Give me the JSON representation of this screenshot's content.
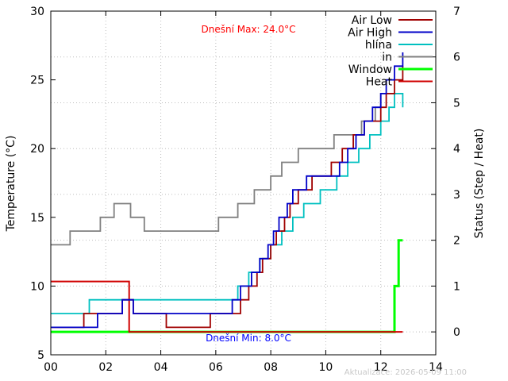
{
  "chart_data": {
    "type": "line",
    "xlabel": "",
    "ylabel": "Temperature (°C)",
    "y2label": "Status (Step / Heat)",
    "xlim": [
      0,
      14
    ],
    "ylim": [
      5,
      30
    ],
    "y2lim": [
      -0.5,
      7
    ],
    "x_ticks": [
      0,
      2,
      4,
      6,
      8,
      10,
      12,
      14
    ],
    "x_tick_labels": [
      "00",
      "02",
      "04",
      "06",
      "08",
      "10",
      "12",
      "14"
    ],
    "y_ticks": [
      5,
      10,
      15,
      20,
      25,
      30
    ],
    "y_tick_labels": [
      "5",
      "10",
      "15",
      "20",
      "25",
      "30"
    ],
    "y2_ticks": [
      0,
      1,
      2,
      3,
      4,
      5,
      6,
      7
    ],
    "y2_tick_labels": [
      "0",
      "1",
      "2",
      "3",
      "4",
      "5",
      "6",
      "7"
    ],
    "grid": true,
    "legend_position": "top-right",
    "annotations": {
      "max_text": "Dnešní Max: 24.0°C",
      "min_text": "Dnešní Min: 8.0°C",
      "max_color": "#ff0000",
      "min_color": "#0000ff"
    },
    "footer": "Aktualizace: 2026-05-09 11:00",
    "series": [
      {
        "name": "Air Low",
        "color": "#a00000",
        "axis": "y",
        "step": true,
        "x": [
          0,
          1.2,
          2.5,
          2.6,
          3.0,
          4.0,
          4.2,
          5.6,
          5.8,
          6.7,
          6.9,
          7.2,
          7.5,
          7.7,
          8.0,
          8.2,
          8.5,
          8.7,
          9.0,
          9.5,
          10.2,
          10.6,
          11.0,
          11.4,
          11.8,
          12.0,
          12.2,
          12.5,
          12.8
        ],
        "y": [
          7,
          8,
          8,
          9,
          8,
          8,
          7,
          7,
          8,
          8,
          9,
          10,
          11,
          12,
          13,
          14,
          15,
          16,
          17,
          18,
          19,
          20,
          21,
          22,
          22,
          23,
          24,
          25,
          26
        ]
      },
      {
        "name": "Air High",
        "color": "#0000c8",
        "axis": "y",
        "step": true,
        "x": [
          0,
          1.7,
          2.6,
          3.0,
          6.3,
          6.6,
          6.9,
          7.3,
          7.6,
          7.9,
          8.1,
          8.3,
          8.6,
          8.8,
          9.0,
          9.3,
          10.5,
          10.8,
          11.1,
          11.4,
          11.7,
          12.0,
          12.2,
          12.5,
          12.8
        ],
        "y": [
          7,
          8,
          9,
          8,
          8,
          9,
          10,
          11,
          12,
          13,
          14,
          15,
          16,
          17,
          17,
          18,
          19,
          20,
          21,
          22,
          23,
          24,
          25,
          26,
          27
        ]
      },
      {
        "name": "hlína",
        "color": "#00c0c0",
        "axis": "y",
        "step": true,
        "x": [
          0,
          1.4,
          6.4,
          6.8,
          7.2,
          7.6,
          8.0,
          8.4,
          8.8,
          9.2,
          9.8,
          10.4,
          10.8,
          11.2,
          11.6,
          12.0,
          12.3,
          12.5,
          12.8
        ],
        "y": [
          8,
          9,
          9,
          10,
          11,
          12,
          13,
          14,
          15,
          16,
          17,
          18,
          19,
          20,
          21,
          22,
          23,
          24,
          23
        ]
      },
      {
        "name": "in",
        "color": "#808080",
        "axis": "y",
        "step": true,
        "x": [
          0,
          0.7,
          1.8,
          2.3,
          2.9,
          3.4,
          4.1,
          4.8,
          5.5,
          6.1,
          6.8,
          7.4,
          8.0,
          8.4,
          9.0,
          9.6,
          10.3,
          10.9,
          11.3,
          11.8,
          12.0,
          12.3,
          12.5,
          12.8
        ],
        "y": [
          13,
          14,
          15,
          16,
          15,
          14,
          14,
          14,
          14,
          15,
          16,
          17,
          18,
          19,
          20,
          20,
          21,
          21,
          22,
          23,
          24,
          24,
          24,
          24
        ]
      },
      {
        "name": "Window",
        "color": "#00ff00",
        "axis": "y2",
        "step": true,
        "x": [
          0,
          12.0,
          12.5,
          12.65,
          12.8
        ],
        "y": [
          0,
          0,
          1,
          2,
          2
        ]
      },
      {
        "name": "Heat",
        "color": "#d00000",
        "axis": "y2",
        "step": true,
        "x": [
          0,
          2.85,
          12.8
        ],
        "y": [
          1.1,
          0,
          0
        ]
      }
    ]
  }
}
